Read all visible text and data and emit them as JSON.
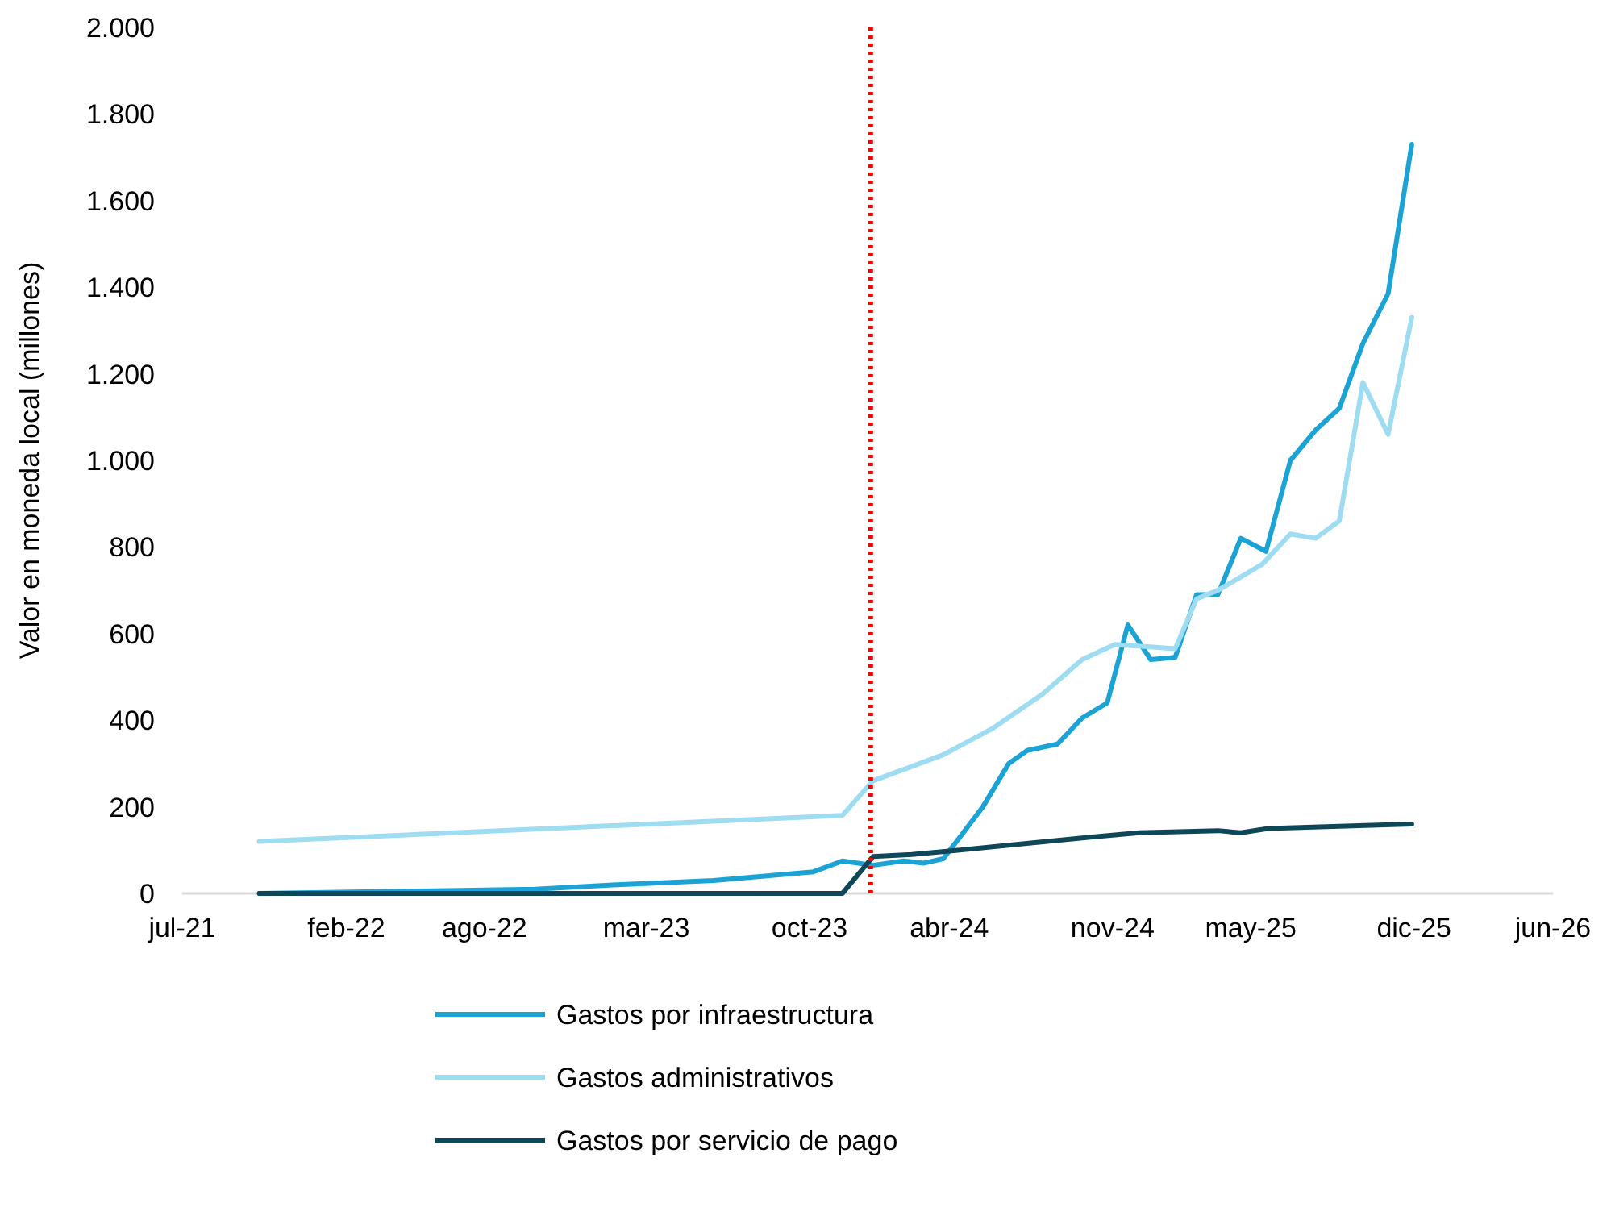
{
  "chart_data": {
    "type": "line",
    "ylabel": "Valor en moneda local (millones)",
    "xlim": [
      "2021-07-01",
      "2026-06-01"
    ],
    "xticks": [
      {
        "value": "2021-07-01",
        "label": "jul-21"
      },
      {
        "value": "2022-02-01",
        "label": "feb-22"
      },
      {
        "value": "2022-08-01",
        "label": "ago-22"
      },
      {
        "value": "2023-03-01",
        "label": "mar-23"
      },
      {
        "value": "2023-10-01",
        "label": "oct-23"
      },
      {
        "value": "2024-04-01",
        "label": "abr-24"
      },
      {
        "value": "2024-11-01",
        "label": "nov-24"
      },
      {
        "value": "2025-05-01",
        "label": "may-25"
      },
      {
        "value": "2025-12-01",
        "label": "dic-25"
      },
      {
        "value": "2026-06-01",
        "label": "jun-26"
      }
    ],
    "ylim": [
      0,
      2000
    ],
    "yticks": [
      0,
      200,
      400,
      600,
      800,
      {
        "value": 1000,
        "label": "1.000"
      },
      {
        "value": 1200,
        "label": "1.200"
      },
      {
        "value": 1400,
        "label": "1.400"
      },
      {
        "value": 1600,
        "label": "1.600"
      },
      {
        "value": 1800,
        "label": "1.800"
      },
      {
        "value": 2000,
        "label": "2.000"
      }
    ],
    "grid": false,
    "legend": "bottom",
    "marker": "none",
    "line_style": "solid",
    "series": [
      {
        "name": "Gastos por infraestructura",
        "color": "#1ba3d6",
        "x": [
          "2021-10-10",
          "2022-04-18",
          "2022-10-07",
          "2023-01-22",
          "2023-05-28",
          "2023-10-06",
          "2023-11-13",
          "2023-12-23",
          "2024-02-01",
          "2024-02-28",
          "2024-03-24",
          "2024-04-15",
          "2024-05-15",
          "2024-06-18",
          "2024-07-12",
          "2024-08-21",
          "2024-09-22",
          "2024-10-25",
          "2024-11-21",
          "2024-12-21",
          "2025-01-22",
          "2025-02-19",
          "2025-03-19",
          "2025-04-18",
          "2025-05-21",
          "2025-06-22",
          "2025-07-25",
          "2025-08-25",
          "2025-09-25",
          "2025-10-28",
          "2025-11-28"
        ],
        "values": [
          0,
          5,
          10,
          20,
          30,
          50,
          75,
          65,
          75,
          70,
          80,
          130,
          200,
          300,
          330,
          345,
          405,
          440,
          620,
          540,
          545,
          690,
          690,
          820,
          790,
          1000,
          1070,
          1120,
          1270,
          1385,
          1730
        ]
      },
      {
        "name": "Gastos administrativos",
        "color": "#9edcf2",
        "x": [
          "2021-10-10",
          "2023-11-13",
          "2023-12-23",
          "2024-03-24",
          "2024-05-27",
          "2024-08-01",
          "2024-09-22",
          "2024-11-04",
          "2024-12-16",
          "2025-01-22",
          "2025-02-19",
          "2025-03-19",
          "2025-05-16",
          "2025-06-22",
          "2025-07-25",
          "2025-08-25",
          "2025-09-25",
          "2025-10-28",
          "2025-11-28"
        ],
        "values": [
          120,
          180,
          260,
          320,
          380,
          460,
          540,
          575,
          570,
          565,
          680,
          700,
          760,
          830,
          820,
          860,
          1180,
          1060,
          1330
        ]
      },
      {
        "name": "Gastos por servicio de pago",
        "color": "#0e4858",
        "x": [
          "2021-10-10",
          "2023-11-13",
          "2023-12-23",
          "2024-02-12",
          "2024-04-15",
          "2024-07-09",
          "2024-10-03",
          "2024-12-06",
          "2025-03-19",
          "2025-04-18",
          "2025-05-24",
          "2025-08-25",
          "2025-11-28"
        ],
        "values": [
          0,
          0,
          85,
          90,
          100,
          115,
          130,
          140,
          145,
          140,
          150,
          155,
          160
        ]
      }
    ],
    "ref_lines": [
      {
        "axis": "x",
        "value": "2023-12-20",
        "color": "#ff0000",
        "line_style": "dotted"
      }
    ]
  }
}
